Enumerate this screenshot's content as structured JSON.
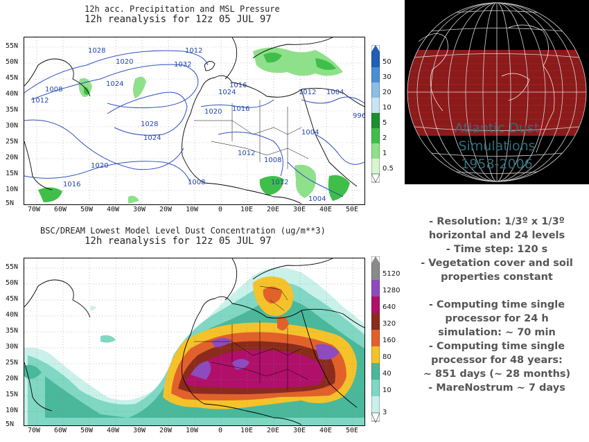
{
  "top_map": {
    "title_line1": "12h acc. Precipitation and MSL Pressure",
    "title_line2": "12h reanalysis for 12z 05 JUL 97",
    "isobar_labels": [
      "1020",
      "1032",
      "1024",
      "1008",
      "1012",
      "1028",
      "1024",
      "1020",
      "1016",
      "1012",
      "1024",
      "1016",
      "1020",
      "1016",
      "1012",
      "1004",
      "1004",
      "996",
      "1012",
      "1008",
      "1012",
      "1008",
      "1004",
      "1028"
    ],
    "colorbar_labels": [
      "50",
      "30",
      "20",
      "10",
      "5",
      "2",
      "1",
      "0.5"
    ],
    "colorbar_colors": [
      "#1f5fb5",
      "#4a8fd6",
      "#8bbde8",
      "#c9e4f5",
      "#1c8f2f",
      "#3fbf4a",
      "#8fe08a",
      "#d8f5d0"
    ]
  },
  "bottom_map": {
    "title_line1": "BSC/DREAM Lowest Model Level Dust Concentration (ug/m**3)",
    "title_line2": "12h reanalysis for 12z 05 JUL 97",
    "colorbar_labels": [
      "5120",
      "1280",
      "640",
      "320",
      "160",
      "80",
      "40",
      "10",
      "3"
    ],
    "colorbar_colors": [
      "#8a8a8a",
      "#8e4bbf",
      "#b0106a",
      "#8b2b1c",
      "#e2612a",
      "#f6c22a",
      "#4ab89a",
      "#7fd7c4",
      "#c9f1ea"
    ]
  },
  "axes": {
    "lat_labels": [
      "55N",
      "50N",
      "45N",
      "40N",
      "35N",
      "30N",
      "25N",
      "20N",
      "15N",
      "10N",
      "5N"
    ],
    "lon_labels": [
      "70W",
      "60W",
      "50W",
      "40W",
      "30W",
      "20W",
      "10W",
      "0",
      "10E",
      "20E",
      "30E",
      "40E",
      "50E"
    ]
  },
  "globe": {
    "title_lines": [
      "Atlantic Dust",
      "Simulations",
      "1958-2006"
    ]
  },
  "notes": {
    "lines": [
      "- Resolution: 1/3º x 1/3º",
      "horizontal and 24 levels",
      "- Time step: 120 s",
      "- Vegetation cover and soil",
      "properties constant",
      "",
      "- Computing time single",
      "processor for 24 h",
      "simulation: ~ 70 min",
      "- Computing time single",
      "processor for 48 years:",
      "~ 851 days (~ 28 months)",
      "- MareNostrum ~ 7 days"
    ]
  }
}
